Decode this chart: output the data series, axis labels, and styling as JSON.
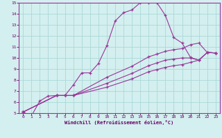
{
  "bg_color": "#d4efef",
  "line_color": "#993399",
  "grid_color": "#aad8d8",
  "xlabel": "Windchill (Refroidissement éolien,°C)",
  "xlabel_color": "#660066",
  "tick_color": "#660066",
  "xlim": [
    -0.5,
    23.5
  ],
  "ylim": [
    5,
    15
  ],
  "yticks": [
    5,
    6,
    7,
    8,
    9,
    10,
    11,
    12,
    13,
    14,
    15
  ],
  "xticks": [
    0,
    1,
    2,
    3,
    4,
    5,
    6,
    7,
    8,
    9,
    10,
    11,
    12,
    13,
    14,
    15,
    16,
    17,
    18,
    19,
    20,
    21,
    22,
    23
  ],
  "series1_x": [
    0,
    1,
    2,
    3,
    4,
    5,
    6,
    7,
    8,
    9,
    10,
    11,
    12,
    13,
    14,
    15,
    16,
    17,
    18,
    19,
    20,
    21,
    22,
    23
  ],
  "series1_y": [
    5.1,
    4.75,
    6.1,
    6.55,
    6.6,
    6.6,
    7.55,
    8.65,
    8.65,
    9.5,
    11.1,
    13.35,
    14.1,
    14.35,
    15.0,
    15.0,
    15.0,
    13.85,
    11.85,
    11.35,
    10.05,
    9.8,
    10.5,
    10.45
  ],
  "series2_x": [
    0,
    4,
    5,
    6,
    10,
    13,
    15,
    16,
    17,
    18,
    19,
    20,
    21,
    22,
    23
  ],
  "series2_y": [
    5.1,
    6.6,
    6.6,
    6.6,
    8.25,
    9.25,
    10.1,
    10.35,
    10.6,
    10.75,
    10.85,
    11.2,
    11.35,
    10.5,
    10.45
  ],
  "series3_x": [
    0,
    4,
    5,
    6,
    10,
    13,
    15,
    16,
    17,
    18,
    19,
    20,
    21,
    22,
    23
  ],
  "series3_y": [
    5.1,
    6.6,
    6.6,
    6.6,
    7.7,
    8.6,
    9.3,
    9.55,
    9.8,
    9.9,
    10.0,
    10.0,
    9.8,
    10.5,
    10.45
  ],
  "series4_x": [
    0,
    4,
    5,
    6,
    10,
    13,
    15,
    16,
    17,
    18,
    19,
    20,
    21,
    22,
    23
  ],
  "series4_y": [
    5.1,
    6.6,
    6.6,
    6.6,
    7.35,
    8.1,
    8.75,
    8.95,
    9.15,
    9.3,
    9.4,
    9.6,
    9.8,
    10.5,
    10.45
  ]
}
